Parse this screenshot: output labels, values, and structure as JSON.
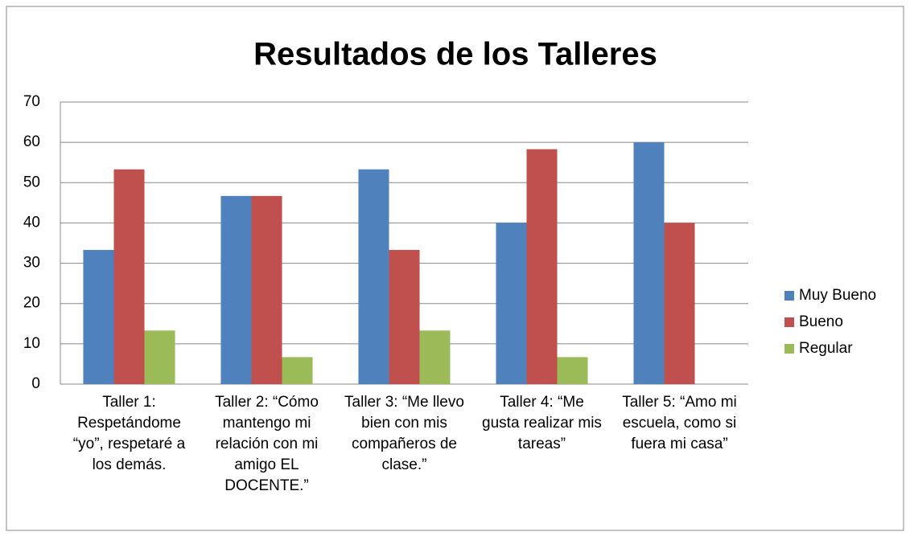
{
  "chart_data": {
    "type": "bar",
    "title": "Resultados de los Talleres",
    "categories": [
      "Taller 1: Respetándome “yo”, respetaré a los demás.",
      "Taller 2: “Cómo mantengo mi relación con mi amigo EL DOCENTE.”",
      "Taller 3: “Me llevo bien con mis compañeros de clase.”",
      "Taller 4: “Me gusta realizar mis tareas”",
      "Taller 5: “Amo mi escuela, como si fuera mi casa”"
    ],
    "series": [
      {
        "name": "Muy Bueno",
        "color": "#4f81bd",
        "values": [
          33.3,
          46.7,
          53.3,
          40,
          60
        ]
      },
      {
        "name": "Bueno",
        "color": "#c0504d",
        "values": [
          53.3,
          46.7,
          33.3,
          58.3,
          40
        ]
      },
      {
        "name": "Regular",
        "color": "#9bbb59",
        "values": [
          13.3,
          6.7,
          13.3,
          6.7,
          0
        ]
      }
    ],
    "ylim": [
      0,
      70
    ],
    "yticks": [
      0,
      10,
      20,
      30,
      40,
      50,
      60,
      70
    ],
    "grid": true,
    "legend": "right"
  }
}
